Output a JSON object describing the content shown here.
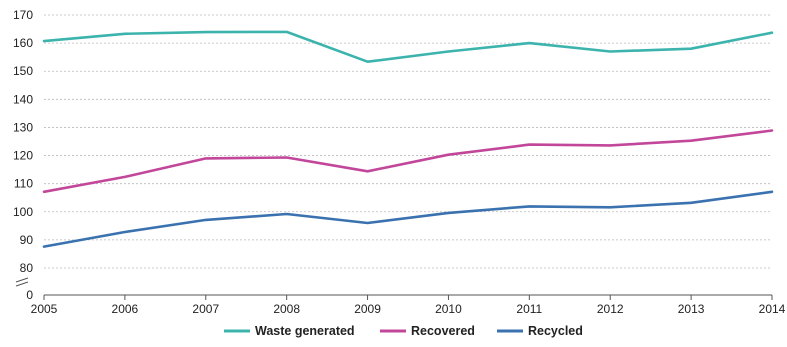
{
  "chart_data": {
    "type": "line",
    "title": "",
    "xlabel": "",
    "ylabel": "",
    "x": [
      "2005",
      "2006",
      "2007",
      "2008",
      "2009",
      "2010",
      "2011",
      "2012",
      "2013",
      "2014"
    ],
    "y_ticks": [
      "0",
      "80",
      "90",
      "100",
      "110",
      "120",
      "130",
      "140",
      "150",
      "160",
      "170"
    ],
    "ylim": [
      80,
      170
    ],
    "y_axis_break": true,
    "grid": "horizontal dashed",
    "legend_position": "bottom",
    "series": [
      {
        "name": "Waste generated",
        "color": "#3cb4ad",
        "values": [
          160.7,
          163.3,
          163.9,
          164.0,
          153.4,
          157.0,
          160.0,
          157.0,
          158.0,
          163.7
        ]
      },
      {
        "name": "Recovered",
        "color": "#c2479a",
        "values": [
          107.1,
          112.4,
          119.0,
          119.3,
          114.4,
          120.3,
          123.9,
          123.6,
          125.3,
          128.9
        ]
      },
      {
        "name": "Recycled",
        "color": "#3a72b0",
        "values": [
          87.6,
          92.8,
          97.1,
          99.2,
          96.0,
          99.6,
          101.9,
          101.6,
          103.2,
          107.1
        ]
      }
    ]
  }
}
